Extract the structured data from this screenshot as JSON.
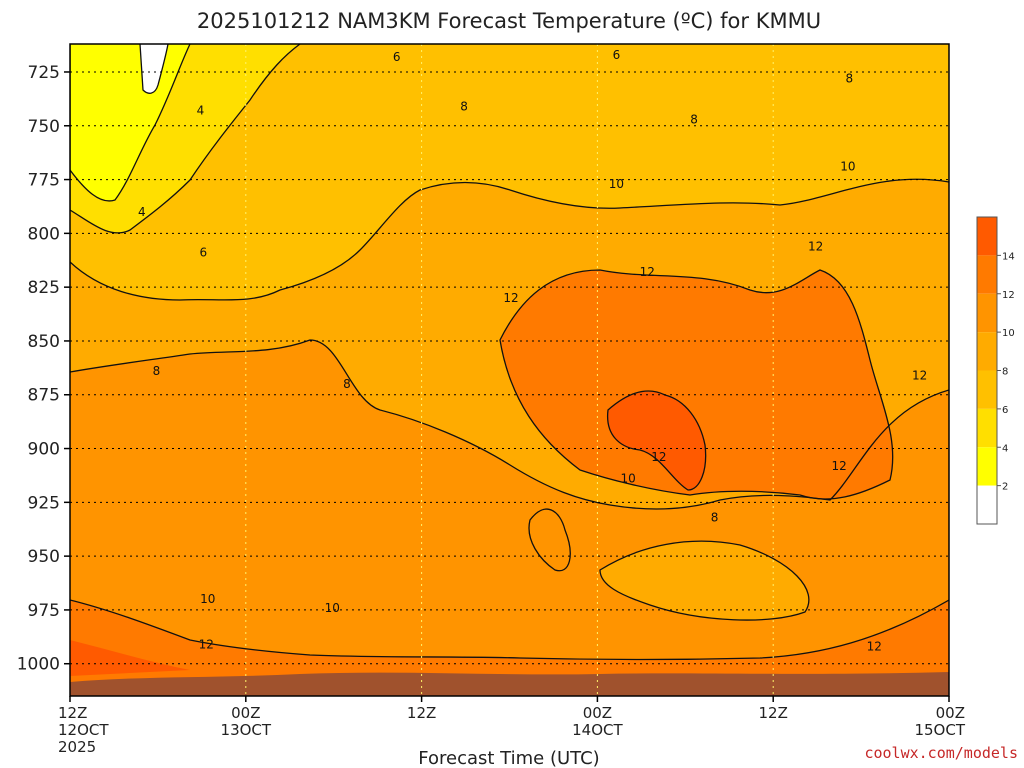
{
  "colors": {
    "t_lt2": "#ffffff",
    "t_2_4": "#ffff00",
    "t_4_6": "#ffdf00",
    "t_6_8": "#ffc000",
    "t_8_10": "#ffab00",
    "t_10_12": "#ff9400",
    "t_12_14": "#ff7a00",
    "t_gt14": "#ff5a00",
    "ground": "#a0522d",
    "contour": "#111111",
    "credit": "#c62828"
  },
  "chart_data": {
    "type": "heatmap",
    "title": "2025101212 NAM3KM Forecast Temperature (ºC) for KMMU",
    "xlabel": "Forecast Time (UTC)",
    "ylabel": "",
    "credit": "coolwx.com/models",
    "x_ticks": [
      {
        "line1": "12Z",
        "line2": "12OCT",
        "line3": "2025"
      },
      {
        "line1": "00Z",
        "line2": "13OCT",
        "line3": ""
      },
      {
        "line1": "12Z",
        "line2": "",
        "line3": ""
      },
      {
        "line1": "00Z",
        "line2": "14OCT",
        "line3": ""
      },
      {
        "line1": "12Z",
        "line2": "",
        "line3": ""
      },
      {
        "line1": "00Z",
        "line2": "15OCT",
        "line3": ""
      }
    ],
    "x_range_hours": [
      0,
      60
    ],
    "y_ticks": [
      725,
      750,
      775,
      800,
      825,
      850,
      875,
      900,
      925,
      950,
      975,
      1000
    ],
    "y_range_hpa": [
      712,
      1015
    ],
    "y_axis_inverted": true,
    "grid": true,
    "colorbar": {
      "levels": [
        2,
        4,
        6,
        8,
        10,
        12,
        14
      ],
      "placement": "right"
    },
    "contour_labels": [
      {
        "text": "6",
        "h": 22.3,
        "p": 718
      },
      {
        "text": "6",
        "h": 37.3,
        "p": 717
      },
      {
        "text": "8",
        "h": 53.2,
        "p": 728
      },
      {
        "text": "4",
        "h": 8.9,
        "p": 743
      },
      {
        "text": "8",
        "h": 26.9,
        "p": 741
      },
      {
        "text": "8",
        "h": 42.6,
        "p": 747
      },
      {
        "text": "10",
        "h": 53.1,
        "p": 769
      },
      {
        "text": "10",
        "h": 37.3,
        "p": 777
      },
      {
        "text": "4",
        "h": 4.9,
        "p": 790
      },
      {
        "text": "12",
        "h": 50.9,
        "p": 806
      },
      {
        "text": "6",
        "h": 9.1,
        "p": 809
      },
      {
        "text": "12",
        "h": 39.4,
        "p": 818
      },
      {
        "text": "12",
        "h": 30.1,
        "p": 830
      },
      {
        "text": "8",
        "h": 5.9,
        "p": 864
      },
      {
        "text": "12",
        "h": 58.0,
        "p": 866
      },
      {
        "text": "8",
        "h": 18.9,
        "p": 870
      },
      {
        "text": "12",
        "h": 40.2,
        "p": 904
      },
      {
        "text": "12",
        "h": 52.5,
        "p": 908
      },
      {
        "text": "10",
        "h": 38.1,
        "p": 914
      },
      {
        "text": "8",
        "h": 44.0,
        "p": 932
      },
      {
        "text": "10",
        "h": 9.4,
        "p": 970
      },
      {
        "text": "10",
        "h": 17.9,
        "p": 974
      },
      {
        "text": "12",
        "h": 9.3,
        "p": 991
      },
      {
        "text": "12",
        "h": 54.9,
        "p": 992
      }
    ]
  }
}
